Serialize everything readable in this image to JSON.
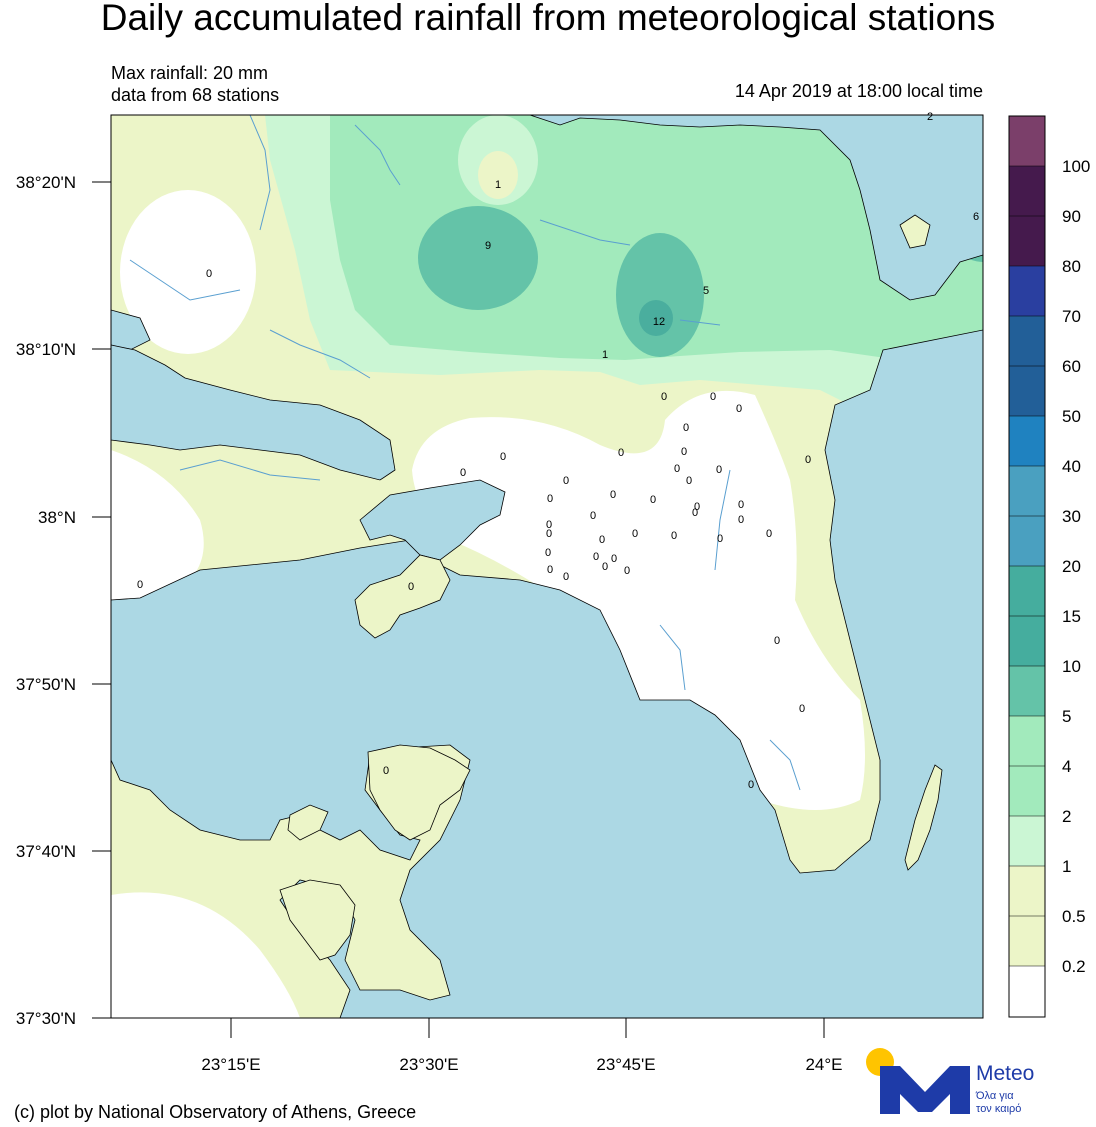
{
  "header": {
    "title": "Daily accumulated rainfall from meteorological stations",
    "max_rainfall": "Max rainfall: 20 mm",
    "stations": "data from 68 stations",
    "timestamp": "14 Apr 2019 at 18:00 local time"
  },
  "axes": {
    "lat_labels": [
      "38°20'N",
      "38°10'N",
      "38°N",
      "37°50'N",
      "37°40'N",
      "37°30'N"
    ],
    "lon_labels": [
      "23°15'E",
      "23°30'E",
      "23°45'E",
      "24°E"
    ]
  },
  "colorbar": {
    "labels": [
      "100",
      "90",
      "80",
      "70",
      "60",
      "50",
      "40",
      "30",
      "20",
      "15",
      "10",
      "5",
      "4",
      "2",
      "1",
      "0.5",
      "0.2"
    ],
    "colors": [
      "#7b3f6a",
      "#521b55",
      "#451a4d",
      "#2a3fa0",
      "#22599a",
      "#225f98",
      "#21689e",
      "#1f82c0",
      "#4aa0c0",
      "#4aa8b8",
      "#40a89a",
      "#4ab09e",
      "#64c3a8",
      "#a0e8bc",
      "#c7f5d2",
      "#eaf7c4",
      "#ffffff"
    ]
  },
  "colors": {
    "sea": "#acd8e4",
    "land_white": "#ffffff",
    "band_0.2": "#ecf5c8",
    "band_1": "#cbf6d4",
    "band_2": "#a2eabc",
    "band_5": "#64c3a8",
    "band_10": "#4aae9e"
  },
  "stations": [
    {
      "value": "1"
    },
    {
      "value": "9"
    },
    {
      "value": "5"
    },
    {
      "value": "12"
    },
    {
      "value": "1"
    },
    {
      "value": "0"
    },
    {
      "value": "0"
    },
    {
      "value": "0"
    },
    {
      "value": "0"
    },
    {
      "value": "0"
    },
    {
      "value": "0"
    },
    {
      "value": "0"
    },
    {
      "value": "0"
    },
    {
      "value": "0"
    },
    {
      "value": "0"
    },
    {
      "value": "0"
    },
    {
      "value": "0"
    },
    {
      "value": "0"
    },
    {
      "value": "0"
    },
    {
      "value": "0"
    },
    {
      "value": "0"
    },
    {
      "value": "0"
    },
    {
      "value": "0"
    },
    {
      "value": "0"
    },
    {
      "value": "0"
    },
    {
      "value": "0"
    },
    {
      "value": "0"
    },
    {
      "value": "0"
    },
    {
      "value": "0"
    },
    {
      "value": "0"
    },
    {
      "value": "0"
    },
    {
      "value": "0"
    },
    {
      "value": "0"
    },
    {
      "value": "0"
    },
    {
      "value": "0"
    },
    {
      "value": "0"
    },
    {
      "value": "0"
    },
    {
      "value": "0"
    },
    {
      "value": "0"
    },
    {
      "value": "0"
    },
    {
      "value": "0"
    },
    {
      "value": "0"
    },
    {
      "value": "0"
    },
    {
      "value": "0"
    },
    {
      "value": "0"
    },
    {
      "value": "0"
    },
    {
      "value": "0"
    },
    {
      "value": "6"
    },
    {
      "value": "2"
    }
  ],
  "footer": {
    "credit": "(c) plot by National Observatory of Athens, Greece",
    "brand": "Meteo",
    "tagline_1": "Όλα για",
    "tagline_2": "τον καιρό"
  }
}
